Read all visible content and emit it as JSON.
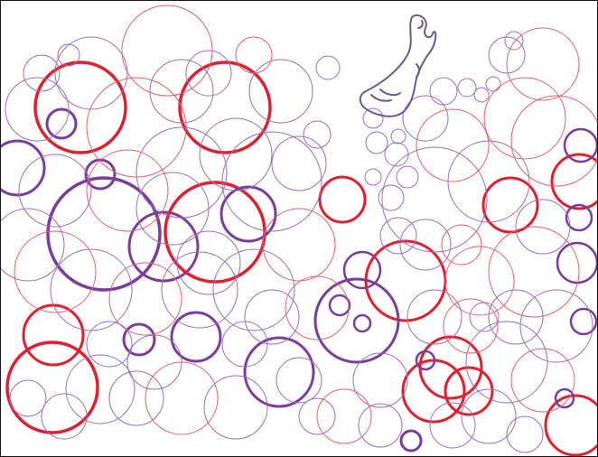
{
  "artwork": {
    "background": "#ffffff",
    "border_color": "#1a1a1a",
    "palette": {
      "red": "#e0202e",
      "red_light": "#e8606a",
      "purple": "#7a3d9e",
      "purple_light": "#9a6cc0"
    },
    "sketch_icon": "ghost-figure-icon"
  }
}
